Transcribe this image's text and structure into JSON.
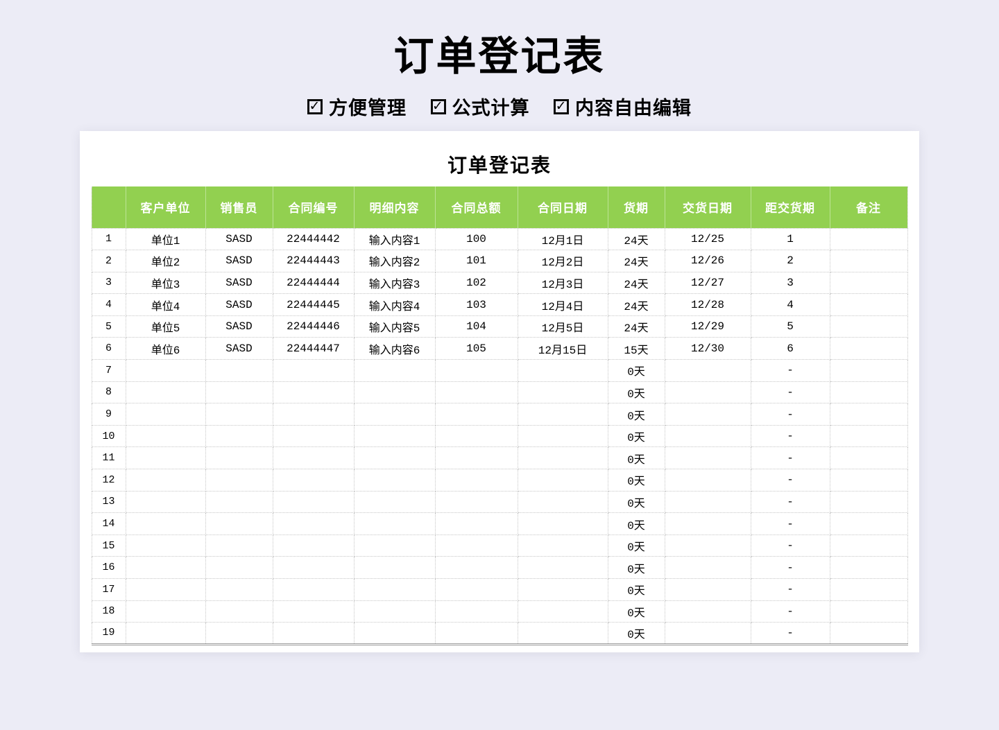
{
  "header": {
    "title": "订单登记表",
    "features": [
      {
        "label": "方便管理"
      },
      {
        "label": "公式计算"
      },
      {
        "label": "内容自由编辑"
      }
    ]
  },
  "icons": {
    "checkbox": "✓"
  },
  "sheet": {
    "title": "订单登记表",
    "columns": [
      "客户单位",
      "销售员",
      "合同编号",
      "明细内容",
      "合同总额",
      "合同日期",
      "货期",
      "交货日期",
      "距交货期",
      "备注"
    ],
    "rows": [
      {
        "num": "1",
        "cells": [
          "单位1",
          "SASD",
          "22444442",
          "输入内容1",
          "100",
          "12月1日",
          "24天",
          "12/25",
          "1",
          ""
        ]
      },
      {
        "num": "2",
        "cells": [
          "单位2",
          "SASD",
          "22444443",
          "输入内容2",
          "101",
          "12月2日",
          "24天",
          "12/26",
          "2",
          ""
        ]
      },
      {
        "num": "3",
        "cells": [
          "单位3",
          "SASD",
          "22444444",
          "输入内容3",
          "102",
          "12月3日",
          "24天",
          "12/27",
          "3",
          ""
        ]
      },
      {
        "num": "4",
        "cells": [
          "单位4",
          "SASD",
          "22444445",
          "输入内容4",
          "103",
          "12月4日",
          "24天",
          "12/28",
          "4",
          ""
        ]
      },
      {
        "num": "5",
        "cells": [
          "单位5",
          "SASD",
          "22444446",
          "输入内容5",
          "104",
          "12月5日",
          "24天",
          "12/29",
          "5",
          ""
        ]
      },
      {
        "num": "6",
        "cells": [
          "单位6",
          "SASD",
          "22444447",
          "输入内容6",
          "105",
          "12月15日",
          "15天",
          "12/30",
          "6",
          ""
        ]
      },
      {
        "num": "7",
        "cells": [
          "",
          "",
          "",
          "",
          "",
          "",
          "0天",
          "",
          "-",
          ""
        ]
      },
      {
        "num": "8",
        "cells": [
          "",
          "",
          "",
          "",
          "",
          "",
          "0天",
          "",
          "-",
          ""
        ]
      },
      {
        "num": "9",
        "cells": [
          "",
          "",
          "",
          "",
          "",
          "",
          "0天",
          "",
          "-",
          ""
        ]
      },
      {
        "num": "10",
        "cells": [
          "",
          "",
          "",
          "",
          "",
          "",
          "0天",
          "",
          "-",
          ""
        ]
      },
      {
        "num": "11",
        "cells": [
          "",
          "",
          "",
          "",
          "",
          "",
          "0天",
          "",
          "-",
          ""
        ]
      },
      {
        "num": "12",
        "cells": [
          "",
          "",
          "",
          "",
          "",
          "",
          "0天",
          "",
          "-",
          ""
        ]
      },
      {
        "num": "13",
        "cells": [
          "",
          "",
          "",
          "",
          "",
          "",
          "0天",
          "",
          "-",
          ""
        ]
      },
      {
        "num": "14",
        "cells": [
          "",
          "",
          "",
          "",
          "",
          "",
          "0天",
          "",
          "-",
          ""
        ]
      },
      {
        "num": "15",
        "cells": [
          "",
          "",
          "",
          "",
          "",
          "",
          "0天",
          "",
          "-",
          ""
        ]
      },
      {
        "num": "16",
        "cells": [
          "",
          "",
          "",
          "",
          "",
          "",
          "0天",
          "",
          "-",
          ""
        ]
      },
      {
        "num": "17",
        "cells": [
          "",
          "",
          "",
          "",
          "",
          "",
          "0天",
          "",
          "-",
          ""
        ]
      },
      {
        "num": "18",
        "cells": [
          "",
          "",
          "",
          "",
          "",
          "",
          "0天",
          "",
          "-",
          ""
        ]
      },
      {
        "num": "19",
        "cells": [
          "",
          "",
          "",
          "",
          "",
          "",
          "0天",
          "",
          "-",
          ""
        ]
      }
    ]
  },
  "colors": {
    "page_bg": "#ECECF6",
    "card_bg": "#FFFFFF",
    "header_bg": "#92D050",
    "header_text": "#FFFFFF",
    "grid_line": "#C6C6C6",
    "body_text": "#000000"
  }
}
